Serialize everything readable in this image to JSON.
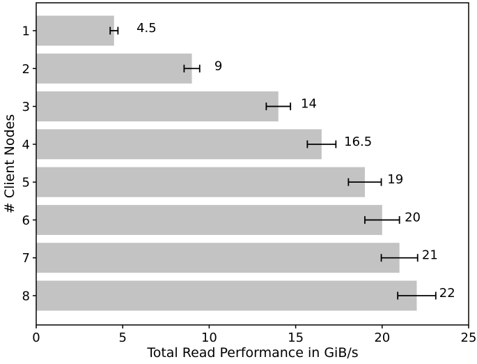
{
  "chart_data": {
    "type": "bar",
    "orientation": "horizontal",
    "title": "",
    "xlabel": "Total Read Performance in GiB/s",
    "ylabel": "# Client Nodes",
    "categories": [
      "1",
      "2",
      "3",
      "4",
      "5",
      "6",
      "7",
      "8"
    ],
    "values": [
      4.5,
      9,
      14,
      16.5,
      19,
      20,
      21,
      22
    ],
    "errors": [
      0.225,
      0.45,
      0.7,
      0.825,
      0.95,
      1.0,
      1.05,
      1.1
    ],
    "bar_labels": [
      "4.5",
      "9",
      "14",
      "16.5",
      "19",
      "20",
      "21",
      "22"
    ],
    "xlim": [
      0,
      25
    ],
    "xticks": [
      "0",
      "5",
      "10",
      "15",
      "20",
      "25"
    ],
    "xtick_values": [
      0,
      5,
      10,
      15,
      20,
      25
    ],
    "grid": false,
    "legend": "none",
    "colors": {
      "bar_fill": "#c3c3c3",
      "errorbar": "#000000",
      "axis": "#000000",
      "text": "#000000",
      "background": "#ffffff"
    }
  }
}
